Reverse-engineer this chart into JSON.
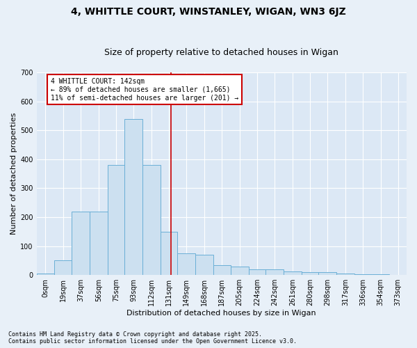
{
  "title": "4, WHITTLE COURT, WINSTANLEY, WIGAN, WN3 6JZ",
  "subtitle": "Size of property relative to detached houses in Wigan",
  "xlabel": "Distribution of detached houses by size in Wigan",
  "ylabel": "Number of detached properties",
  "footnote1": "Contains HM Land Registry data © Crown copyright and database right 2025.",
  "footnote2": "Contains public sector information licensed under the Open Government Licence v3.0.",
  "annotation_line1": "4 WHITTLE COURT: 142sqm",
  "annotation_line2": "← 89% of detached houses are smaller (1,665)",
  "annotation_line3": "11% of semi-detached houses are larger (201) →",
  "bar_labels": [
    "0sqm",
    "19sqm",
    "37sqm",
    "56sqm",
    "75sqm",
    "93sqm",
    "112sqm",
    "131sqm",
    "149sqm",
    "168sqm",
    "187sqm",
    "205sqm",
    "224sqm",
    "242sqm",
    "261sqm",
    "280sqm",
    "298sqm",
    "317sqm",
    "336sqm",
    "354sqm",
    "373sqm"
  ],
  "bar_left_edges": [
    0,
    19,
    37,
    56,
    75,
    93,
    112,
    131,
    149,
    168,
    187,
    205,
    224,
    242,
    261,
    280,
    298,
    317,
    336,
    354,
    373
  ],
  "bar_widths": [
    19,
    18,
    19,
    19,
    18,
    19,
    19,
    18,
    19,
    19,
    18,
    19,
    18,
    19,
    19,
    18,
    19,
    19,
    18,
    19,
    18
  ],
  "bar_heights": [
    5,
    50,
    220,
    220,
    380,
    540,
    380,
    150,
    75,
    70,
    35,
    30,
    20,
    20,
    12,
    10,
    10,
    5,
    3,
    2,
    1
  ],
  "bar_color": "#cce0f0",
  "bar_edge_color": "#6aafd6",
  "vline_color": "#cc0000",
  "vline_x": 142,
  "bg_color": "#e8f0f8",
  "plot_bg_color": "#dce8f5",
  "grid_color": "#ffffff",
  "ylim": [
    0,
    700
  ],
  "yticks": [
    0,
    100,
    200,
    300,
    400,
    500,
    600,
    700
  ],
  "annotation_box_color": "#cc0000",
  "title_fontsize": 10,
  "subtitle_fontsize": 9,
  "annotation_fontsize": 7,
  "ylabel_fontsize": 8,
  "xlabel_fontsize": 8,
  "footnote_fontsize": 6,
  "tick_fontsize": 7
}
